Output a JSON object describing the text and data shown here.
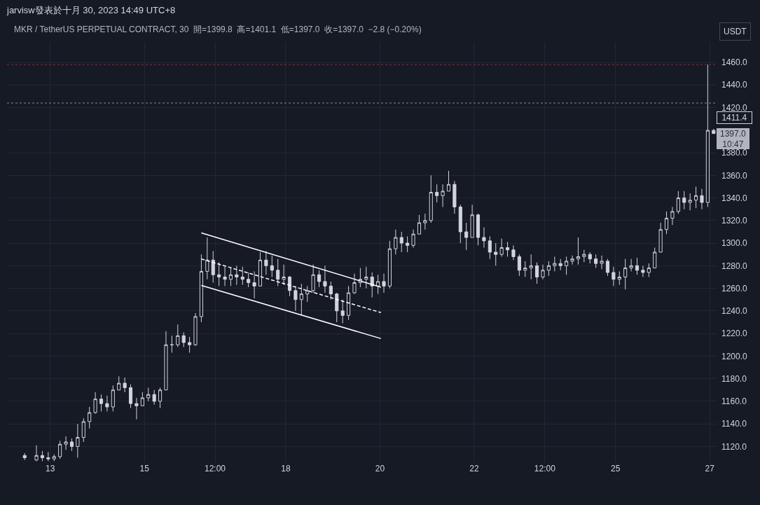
{
  "chart_data": {
    "type": "candlestick",
    "title": "jarvisw發表於十月 30, 2023 14:49 UTC+8",
    "subtitle": "MKR / TetherUS PERPETUAL CONTRACT, 30  開=1399.8  高=1401.1  低=1397.0  收=1397.0  −2.8 (−0.20%)",
    "ylabel": "USDT",
    "xlim": [
      "2023-10-12T02:00",
      "2023-10-27T03:30"
    ],
    "xticks": [
      {
        "value": "2023-10-13",
        "label": "13"
      },
      {
        "value": "2023-10-15",
        "label": "15"
      },
      {
        "value": "2023-10-16T12:00",
        "label": "12:00"
      },
      {
        "value": "2023-10-18",
        "label": "18"
      },
      {
        "value": "2023-10-20",
        "label": "20"
      },
      {
        "value": "2023-10-22",
        "label": "22"
      },
      {
        "value": "2023-10-23T12:00",
        "label": "12:00"
      },
      {
        "value": "2023-10-25",
        "label": "25"
      },
      {
        "value": "2023-10-27",
        "label": "27"
      }
    ],
    "ylim": [
      1106,
      1478
    ],
    "yticks": [
      {
        "value": 1120,
        "label": "1120.0"
      },
      {
        "value": 1140,
        "label": "1140.0"
      },
      {
        "value": 1160,
        "label": "1160.0"
      },
      {
        "value": 1180,
        "label": "1180.0"
      },
      {
        "value": 1200,
        "label": "1200.0"
      },
      {
        "value": 1220,
        "label": "1220.0"
      },
      {
        "value": 1240,
        "label": "1240.0"
      },
      {
        "value": 1260,
        "label": "1260.0"
      },
      {
        "value": 1280,
        "label": "1280.0"
      },
      {
        "value": 1300,
        "label": "1300.0"
      },
      {
        "value": 1320,
        "label": "1320.0"
      },
      {
        "value": 1340,
        "label": "1340.0"
      },
      {
        "value": 1360,
        "label": "1360.0"
      },
      {
        "value": 1380,
        "label": "1380.0"
      },
      {
        "value": 1400,
        "label": null
      },
      {
        "value": 1420,
        "label": "1420.0"
      },
      {
        "value": 1440,
        "label": "1440.0"
      },
      {
        "value": 1460,
        "label": "1460.0"
      }
    ],
    "grid": true,
    "ref_lines": [
      {
        "axis": "y",
        "value": 1458,
        "color": "#7e2f3c",
        "line_style": "dotted"
      },
      {
        "axis": "y",
        "value": 1424,
        "color": "#868993",
        "line_style": "dotted"
      }
    ],
    "annotations": [
      "1411.4",
      "1397.0",
      "10:47"
    ],
    "series": [
      {
        "color": "#d1d4dc",
        "x": [
          "2023-10-12T11:00",
          "2023-10-12T17:00",
          "2023-10-12T20:00",
          "2023-10-12T23:00",
          "2023-10-13T02:00",
          "2023-10-13T05:00",
          "2023-10-13T08:00",
          "2023-10-13T11:00",
          "2023-10-13T14:00",
          "2023-10-13T17:00",
          "2023-10-13T20:00",
          "2023-10-13T23:00",
          "2023-10-14T02:00",
          "2023-10-14T05:00",
          "2023-10-14T08:00",
          "2023-10-14T11:00",
          "2023-10-14T14:00",
          "2023-10-14T17:00",
          "2023-10-14T20:00",
          "2023-10-14T23:00",
          "2023-10-15T02:00",
          "2023-10-15T05:00",
          "2023-10-15T08:00",
          "2023-10-15T11:00",
          "2023-10-15T14:00",
          "2023-10-15T17:00",
          "2023-10-15T20:00",
          "2023-10-15T23:00",
          "2023-10-16T02:00",
          "2023-10-16T05:00",
          "2023-10-16T08:00",
          "2023-10-16T11:00",
          "2023-10-16T14:00",
          "2023-10-16T17:00",
          "2023-10-16T20:00",
          "2023-10-16T23:00",
          "2023-10-17T02:00",
          "2023-10-17T05:00",
          "2023-10-17T08:00",
          "2023-10-17T11:00",
          "2023-10-17T14:00",
          "2023-10-17T17:00",
          "2023-10-17T20:00",
          "2023-10-17T23:00",
          "2023-10-18T02:00",
          "2023-10-18T05:00",
          "2023-10-18T08:00",
          "2023-10-18T11:00",
          "2023-10-18T14:00",
          "2023-10-18T17:00",
          "2023-10-18T20:00",
          "2023-10-18T23:00",
          "2023-10-19T02:00",
          "2023-10-19T05:00",
          "2023-10-19T08:00",
          "2023-10-19T11:00",
          "2023-10-19T14:00",
          "2023-10-19T17:00",
          "2023-10-19T20:00",
          "2023-10-19T23:00",
          "2023-10-20T02:00",
          "2023-10-20T05:00",
          "2023-10-20T08:00",
          "2023-10-20T11:00",
          "2023-10-20T14:00",
          "2023-10-20T17:00",
          "2023-10-20T20:00",
          "2023-10-20T23:00",
          "2023-10-21T02:00",
          "2023-10-21T05:00",
          "2023-10-21T08:00",
          "2023-10-21T11:00",
          "2023-10-21T14:00",
          "2023-10-21T17:00",
          "2023-10-21T20:00",
          "2023-10-21T23:00",
          "2023-10-22T02:00",
          "2023-10-22T05:00",
          "2023-10-22T08:00",
          "2023-10-22T11:00",
          "2023-10-22T14:00",
          "2023-10-22T17:00",
          "2023-10-22T20:00",
          "2023-10-22T23:00",
          "2023-10-23T02:00",
          "2023-10-23T05:00",
          "2023-10-23T08:00",
          "2023-10-23T11:00",
          "2023-10-23T14:00",
          "2023-10-23T17:00",
          "2023-10-23T20:00",
          "2023-10-23T23:00",
          "2023-10-24T02:00",
          "2023-10-24T05:00",
          "2023-10-24T08:00",
          "2023-10-24T11:00",
          "2023-10-24T14:00",
          "2023-10-24T17:00",
          "2023-10-24T20:00",
          "2023-10-24T23:00",
          "2023-10-25T02:00",
          "2023-10-25T05:00",
          "2023-10-25T08:00",
          "2023-10-25T11:00",
          "2023-10-25T14:00",
          "2023-10-25T17:00",
          "2023-10-25T20:00",
          "2023-10-25T23:00",
          "2023-10-26T02:00",
          "2023-10-26T05:00",
          "2023-10-26T08:00",
          "2023-10-26T11:00",
          "2023-10-26T14:00",
          "2023-10-26T17:00",
          "2023-10-26T20:00",
          "2023-10-26T23:00",
          "2023-10-27T02:00"
        ],
        "ohlc": [
          [
            1112,
            1114,
            1108,
            1110
          ],
          [
            1108,
            1121,
            1107,
            1112
          ],
          [
            1112,
            1116,
            1107,
            1110
          ],
          [
            1110,
            1115,
            1107,
            1109
          ],
          [
            1109,
            1113,
            1107,
            1111
          ],
          [
            1111,
            1125,
            1109,
            1122
          ],
          [
            1122,
            1129,
            1117,
            1124
          ],
          [
            1124,
            1127,
            1116,
            1120
          ],
          [
            1120,
            1140,
            1110,
            1128
          ],
          [
            1128,
            1145,
            1124,
            1142
          ],
          [
            1142,
            1155,
            1136,
            1150
          ],
          [
            1150,
            1168,
            1149,
            1162
          ],
          [
            1162,
            1166,
            1151,
            1158
          ],
          [
            1158,
            1165,
            1151,
            1155
          ],
          [
            1155,
            1174,
            1151,
            1170
          ],
          [
            1170,
            1182,
            1170,
            1176
          ],
          [
            1176,
            1181,
            1168,
            1172
          ],
          [
            1172,
            1175,
            1154,
            1158
          ],
          [
            1158,
            1163,
            1144,
            1156
          ],
          [
            1156,
            1168,
            1156,
            1163
          ],
          [
            1163,
            1172,
            1160,
            1166
          ],
          [
            1166,
            1170,
            1157,
            1160
          ],
          [
            1160,
            1172,
            1154,
            1170
          ],
          [
            1170,
            1222,
            1170,
            1210
          ],
          [
            1210,
            1218,
            1203,
            1210
          ],
          [
            1210,
            1228,
            1208,
            1218
          ],
          [
            1218,
            1221,
            1208,
            1212
          ],
          [
            1212,
            1217,
            1203,
            1210
          ],
          [
            1210,
            1238,
            1209,
            1235
          ],
          [
            1235,
            1290,
            1230,
            1275
          ],
          [
            1275,
            1305,
            1268,
            1285
          ],
          [
            1285,
            1293,
            1265,
            1272
          ],
          [
            1272,
            1283,
            1262,
            1270
          ],
          [
            1270,
            1279,
            1262,
            1268
          ],
          [
            1268,
            1278,
            1262,
            1272
          ],
          [
            1272,
            1280,
            1263,
            1270
          ],
          [
            1270,
            1279,
            1263,
            1268
          ],
          [
            1268,
            1274,
            1261,
            1265
          ],
          [
            1265,
            1275,
            1251,
            1262
          ],
          [
            1262,
            1292,
            1262,
            1285
          ],
          [
            1285,
            1293,
            1272,
            1280
          ],
          [
            1280,
            1289,
            1270,
            1276
          ],
          [
            1276,
            1286,
            1262,
            1268
          ],
          [
            1268,
            1281,
            1263,
            1270
          ],
          [
            1270,
            1271,
            1253,
            1258
          ],
          [
            1258,
            1262,
            1240,
            1250
          ],
          [
            1250,
            1264,
            1236,
            1255
          ],
          [
            1255,
            1262,
            1248,
            1258
          ],
          [
            1258,
            1281,
            1256,
            1272
          ],
          [
            1272,
            1276,
            1261,
            1266
          ],
          [
            1266,
            1280,
            1256,
            1262
          ],
          [
            1262,
            1266,
            1250,
            1255
          ],
          [
            1255,
            1256,
            1230,
            1240
          ],
          [
            1240,
            1250,
            1229,
            1236
          ],
          [
            1236,
            1262,
            1232,
            1256
          ],
          [
            1256,
            1273,
            1255,
            1265
          ],
          [
            1265,
            1278,
            1261,
            1268
          ],
          [
            1268,
            1279,
            1260,
            1270
          ],
          [
            1270,
            1274,
            1252,
            1262
          ],
          [
            1262,
            1272,
            1255,
            1266
          ],
          [
            1266,
            1273,
            1256,
            1262
          ],
          [
            1262,
            1302,
            1260,
            1295
          ],
          [
            1295,
            1312,
            1290,
            1305
          ],
          [
            1305,
            1310,
            1292,
            1300
          ],
          [
            1300,
            1306,
            1292,
            1298
          ],
          [
            1298,
            1312,
            1296,
            1308
          ],
          [
            1308,
            1325,
            1308,
            1318
          ],
          [
            1318,
            1326,
            1312,
            1320
          ],
          [
            1320,
            1360,
            1318,
            1345
          ],
          [
            1345,
            1352,
            1336,
            1342
          ],
          [
            1342,
            1352,
            1332,
            1346
          ],
          [
            1346,
            1364,
            1346,
            1352
          ],
          [
            1352,
            1355,
            1326,
            1332
          ],
          [
            1332,
            1334,
            1300,
            1310
          ],
          [
            1310,
            1318,
            1294,
            1305
          ],
          [
            1305,
            1334,
            1305,
            1325
          ],
          [
            1325,
            1326,
            1298,
            1305
          ],
          [
            1305,
            1314,
            1296,
            1302
          ],
          [
            1302,
            1306,
            1286,
            1292
          ],
          [
            1292,
            1300,
            1280,
            1290
          ],
          [
            1290,
            1304,
            1288,
            1296
          ],
          [
            1296,
            1301,
            1288,
            1294
          ],
          [
            1294,
            1298,
            1285,
            1288
          ],
          [
            1288,
            1290,
            1271,
            1276
          ],
          [
            1276,
            1284,
            1270,
            1278
          ],
          [
            1278,
            1290,
            1268,
            1280
          ],
          [
            1280,
            1283,
            1264,
            1270
          ],
          [
            1270,
            1281,
            1268,
            1276
          ],
          [
            1276,
            1284,
            1271,
            1280
          ],
          [
            1280,
            1288,
            1275,
            1282
          ],
          [
            1282,
            1286,
            1276,
            1280
          ],
          [
            1280,
            1288,
            1272,
            1284
          ],
          [
            1284,
            1289,
            1281,
            1286
          ],
          [
            1286,
            1305,
            1281,
            1288
          ],
          [
            1288,
            1294,
            1283,
            1290
          ],
          [
            1290,
            1292,
            1282,
            1286
          ],
          [
            1286,
            1290,
            1278,
            1282
          ],
          [
            1282,
            1289,
            1277,
            1284
          ],
          [
            1284,
            1286,
            1271,
            1274
          ],
          [
            1274,
            1279,
            1262,
            1268
          ],
          [
            1268,
            1275,
            1263,
            1270
          ],
          [
            1270,
            1286,
            1259,
            1278
          ],
          [
            1278,
            1286,
            1275,
            1280
          ],
          [
            1280,
            1287,
            1272,
            1276
          ],
          [
            1276,
            1280,
            1270,
            1274
          ],
          [
            1274,
            1282,
            1270,
            1278
          ],
          [
            1278,
            1296,
            1278,
            1292
          ],
          [
            1292,
            1318,
            1292,
            1312
          ],
          [
            1312,
            1328,
            1308,
            1322
          ],
          [
            1322,
            1332,
            1316,
            1328
          ],
          [
            1328,
            1346,
            1326,
            1340
          ],
          [
            1340,
            1346,
            1330,
            1336
          ],
          [
            1336,
            1344,
            1329,
            1338
          ],
          [
            1338,
            1350,
            1331,
            1342
          ],
          [
            1342,
            1348,
            1330,
            1336
          ],
          [
            1336,
            1458,
            1332,
            1399.8
          ],
          [
            1399.8,
            1401.1,
            1397.0,
            1397.0
          ]
        ]
      },
      {
        "type": "line",
        "color": "#ffffff",
        "line_style": "solid",
        "x": [
          "2023-10-16T05:00",
          "2023-10-20T00:30"
        ],
        "values": [
          1309,
          1261
        ]
      },
      {
        "type": "line",
        "color": "#ffffff",
        "line_style": "dashed",
        "x": [
          "2023-10-16T05:00",
          "2023-10-20T00:30"
        ],
        "values": [
          1286,
          1238.5
        ]
      },
      {
        "type": "line",
        "color": "#ffffff",
        "line_style": "solid",
        "x": [
          "2023-10-16T05:00",
          "2023-10-20T00:30"
        ],
        "values": [
          1262.5,
          1215.5
        ]
      }
    ]
  }
}
